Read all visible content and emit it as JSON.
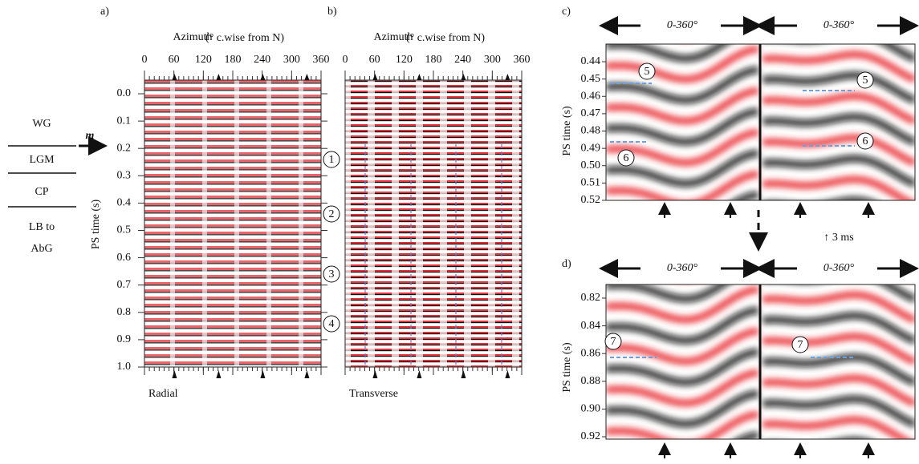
{
  "strata": {
    "layers": [
      "WG",
      "LGM",
      "CP",
      "LB to",
      "AbG"
    ],
    "marker": "m"
  },
  "panels": [
    {
      "label": "a)",
      "x_title": "Azimuth",
      "x_title_note": "(° c.wise from N)",
      "xticks": [
        0,
        60,
        120,
        180,
        240,
        300,
        360
      ],
      "y_title": "PS time (s)",
      "yticks": [
        {
          "value": 0,
          "label": "0.0"
        },
        0.1,
        0.2,
        0.3,
        0.4,
        0.5,
        0.6,
        0.7,
        0.8,
        0.9,
        {
          "value": 1,
          "label": "1.0"
        }
      ],
      "caption": "Radial",
      "events": [
        "1",
        "2",
        "3",
        "4"
      ]
    },
    {
      "label": "b)",
      "x_title": "Azimuth",
      "x_title_note": "(° c.wise from N)",
      "xticks": [
        0,
        60,
        120,
        180,
        240,
        300,
        360
      ],
      "caption": "Transverse"
    },
    {
      "label": "c)",
      "headers": [
        "0-360°",
        "0-360°"
      ],
      "y_title": "PS time (s)",
      "yticks": [
        0.44,
        0.45,
        0.46,
        0.47,
        0.48,
        0.49,
        {
          "value": 0.5,
          "label": "0.50"
        },
        0.51,
        0.52
      ],
      "events": [
        "5",
        "6",
        "5",
        "6"
      ]
    },
    {
      "label": "d)",
      "headers": [
        "0-360°",
        "0-360°"
      ],
      "y_title": "PS time (s)",
      "yticks": [
        0.82,
        0.84,
        0.86,
        0.88,
        {
          "value": 0.9,
          "label": "0.90"
        },
        0.92
      ],
      "events": [
        "7",
        "7"
      ]
    }
  ],
  "shift_note": "↑ 3 ms"
}
